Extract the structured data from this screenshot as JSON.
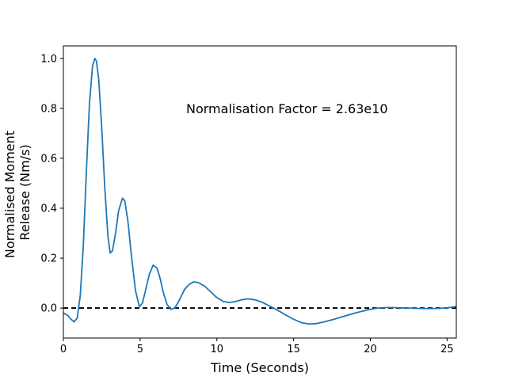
{
  "chart_data": {
    "type": "line",
    "title": "",
    "xlabel": "Time (Seconds)",
    "ylabel_lines": [
      "Normalised Moment",
      "Release (Nm/s)"
    ],
    "xlim": [
      0,
      25.6
    ],
    "ylim": [
      -0.12,
      1.05
    ],
    "xticks": [
      0,
      5,
      10,
      15,
      20,
      25
    ],
    "yticks": [
      0.0,
      0.2,
      0.4,
      0.6,
      0.8,
      1.0
    ],
    "xtick_labels": [
      "0",
      "5",
      "10",
      "15",
      "20",
      "25"
    ],
    "ytick_labels": [
      "0.0",
      "0.2",
      "0.4",
      "0.6",
      "0.8",
      "1.0"
    ],
    "grid": false,
    "annotation": {
      "text": "Normalisation Factor = 2.63e10",
      "x": 8.0,
      "y": 0.8
    },
    "reference_line": {
      "y": 0.0,
      "style": "dashed",
      "color": "#000000"
    },
    "series": [
      {
        "color": "#1f77b4",
        "x": [
          0,
          0.3,
          0.5,
          0.7,
          0.9,
          1.1,
          1.3,
          1.5,
          1.7,
          1.9,
          2.05,
          2.15,
          2.3,
          2.5,
          2.7,
          2.9,
          3.05,
          3.2,
          3.4,
          3.6,
          3.85,
          4.0,
          4.2,
          4.45,
          4.7,
          4.95,
          5.15,
          5.35,
          5.6,
          5.85,
          6.1,
          6.3,
          6.5,
          6.75,
          7.0,
          7.25,
          7.5,
          7.7,
          7.9,
          8.2,
          8.5,
          8.8,
          9.2,
          9.6,
          10.0,
          10.4,
          10.8,
          11.2,
          11.6,
          12.0,
          12.5,
          13.0,
          13.5,
          14.0,
          14.5,
          15.0,
          15.5,
          16.0,
          16.5,
          17.0,
          17.5,
          18.0,
          18.5,
          19.0,
          19.5,
          20.0,
          20.5,
          21.0,
          21.5,
          22.0,
          22.5,
          23.0,
          23.5,
          24.0,
          24.5,
          25.0,
          25.6
        ],
        "y": [
          -0.02,
          -0.03,
          -0.045,
          -0.055,
          -0.04,
          0.05,
          0.25,
          0.55,
          0.82,
          0.97,
          1.0,
          0.99,
          0.92,
          0.72,
          0.48,
          0.29,
          0.22,
          0.23,
          0.3,
          0.39,
          0.44,
          0.43,
          0.35,
          0.2,
          0.07,
          0.005,
          0.02,
          0.07,
          0.135,
          0.172,
          0.16,
          0.12,
          0.065,
          0.015,
          -0.005,
          0.0,
          0.025,
          0.05,
          0.075,
          0.095,
          0.105,
          0.102,
          0.088,
          0.065,
          0.042,
          0.027,
          0.022,
          0.026,
          0.033,
          0.037,
          0.033,
          0.022,
          0.006,
          -0.01,
          -0.028,
          -0.045,
          -0.058,
          -0.064,
          -0.062,
          -0.055,
          -0.047,
          -0.038,
          -0.029,
          -0.02,
          -0.012,
          -0.005,
          0.0,
          0.002,
          0.002,
          0.001,
          0.0,
          -0.001,
          -0.002,
          -0.002,
          -0.001,
          0.001,
          0.006
        ]
      }
    ]
  }
}
